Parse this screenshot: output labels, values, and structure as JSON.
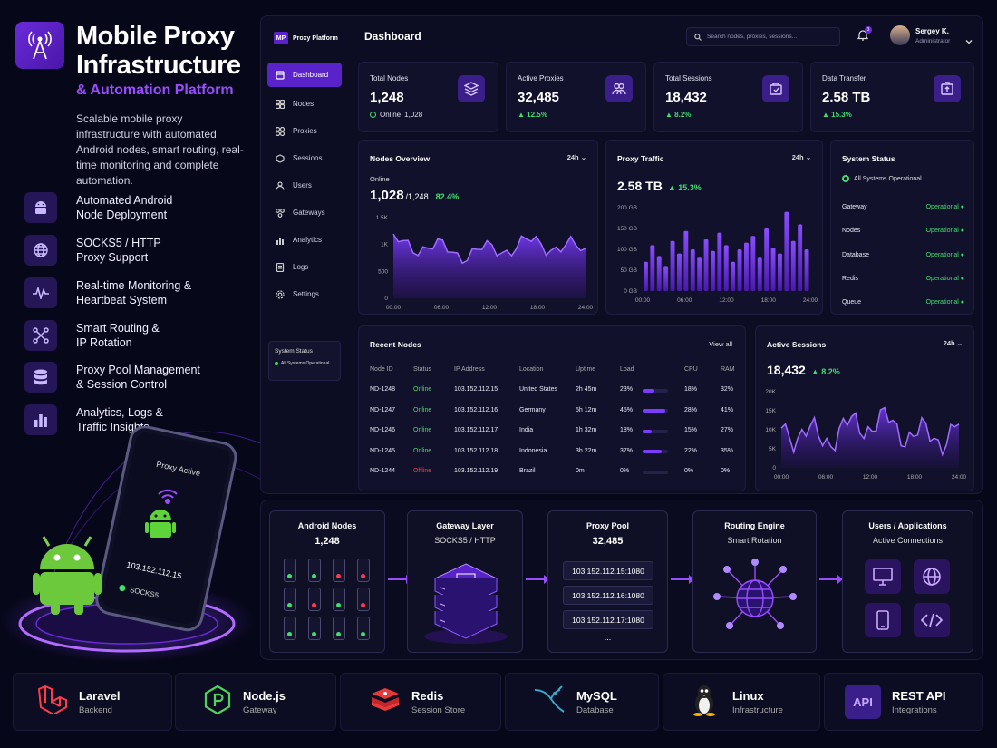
{
  "hero": {
    "title_line1": "Mobile Proxy",
    "title_line2": "Infrastructure",
    "subtitle": "& Automation Platform",
    "description": "Scalable mobile proxy infrastructure with automated Android nodes, smart routing, real-time monitoring and complete automation.",
    "features": [
      {
        "icon": "android-icon",
        "line1": "Automated Android",
        "line2": "Node Deployment"
      },
      {
        "icon": "globe-icon",
        "line1": "SOCKS5 / HTTP",
        "line2": "Proxy Support"
      },
      {
        "icon": "pulse-icon",
        "line1": "Real-time Monitoring &",
        "line2": "Heartbeat System"
      },
      {
        "icon": "routing-icon",
        "line1": "Smart Routing &",
        "line2": "IP Rotation"
      },
      {
        "icon": "database-icon",
        "line1": "Proxy Pool Management",
        "line2": "& Session Control"
      },
      {
        "icon": "bar-chart-icon",
        "line1": "Analytics, Logs &",
        "line2": "Traffic Insights"
      }
    ]
  },
  "phone": {
    "status": "Proxy Active",
    "ip": "103.152.112.15",
    "protocol": "SOCKS5"
  },
  "sidebar": {
    "brand_badge": "MP",
    "brand_name": "Proxy Platform",
    "items": [
      {
        "label": "Dashboard",
        "icon": "dashboard-icon"
      },
      {
        "label": "Nodes",
        "icon": "nodes-icon"
      },
      {
        "label": "Proxies",
        "icon": "proxies-icon"
      },
      {
        "label": "Sessions",
        "icon": "sessions-icon"
      },
      {
        "label": "Users",
        "icon": "users-icon"
      },
      {
        "label": "Gateways",
        "icon": "gateways-icon"
      },
      {
        "label": "Analytics",
        "icon": "analytics-icon"
      },
      {
        "label": "Logs",
        "icon": "logs-icon"
      },
      {
        "label": "Settings",
        "icon": "settings-icon"
      }
    ],
    "status_title": "System Status",
    "status_text": "All Systems Operational"
  },
  "topbar": {
    "title": "Dashboard",
    "search_placeholder": "Search nodes, proxies, sessions...",
    "notifications": "3",
    "user_name": "Sergey K.",
    "user_role": "Administrator"
  },
  "kpis": [
    {
      "label": "Total Nodes",
      "value": "1,248",
      "sub": "1,028",
      "sub_prefix": "Online",
      "icon": "layers-icon"
    },
    {
      "label": "Active Proxies",
      "value": "32,485",
      "sub": "▲ 12.5%",
      "icon": "users-icon"
    },
    {
      "label": "Total Sessions",
      "value": "18,432",
      "sub": "▲ 8.2%",
      "icon": "session-box-icon"
    },
    {
      "label": "Data Transfer",
      "value": "2.58 TB",
      "sub": "▲ 15.3%",
      "icon": "package-icon"
    }
  ],
  "nodes_overview": {
    "title": "Nodes Overview",
    "range": "24h",
    "caption": "Online",
    "value": "1,028",
    "total": "/1,248",
    "pct": "82.4%",
    "y_ticks": [
      "1.5K",
      "1K",
      "500",
      "0"
    ],
    "x_ticks": [
      "00:00",
      "06:00",
      "12:00",
      "18:00",
      "24:00"
    ]
  },
  "proxy_traffic": {
    "title": "Proxy Traffic",
    "range": "24h",
    "value": "2.58 TB",
    "pct": "▲ 15.3%",
    "y_ticks": [
      "200 GB",
      "150 GB",
      "100 GB",
      "50 GB",
      "0 GB"
    ],
    "x_ticks": [
      "00:00",
      "06:00",
      "12:00",
      "18:00",
      "24:00"
    ]
  },
  "system_status": {
    "title": "System Status",
    "overall": "All Systems Operational",
    "rows": [
      {
        "name": "Gateway",
        "status": "Operational"
      },
      {
        "name": "Nodes",
        "status": "Operational"
      },
      {
        "name": "Database",
        "status": "Operational"
      },
      {
        "name": "Redis",
        "status": "Operational"
      },
      {
        "name": "Queue",
        "status": "Operational"
      }
    ]
  },
  "recent_nodes": {
    "title": "Recent Nodes",
    "view_all": "View all",
    "headers": [
      "Node ID",
      "Status",
      "IP Address",
      "Location",
      "Uptime",
      "Load",
      "CPU",
      "RAM"
    ],
    "rows": [
      {
        "id": "ND-1248",
        "status": "Online",
        "ip": "103.152.112.15",
        "location": "United States",
        "uptime": "2h 45m",
        "load": "23%",
        "load_frac": 0.23,
        "cpu": "18%",
        "ram": "32%"
      },
      {
        "id": "ND-1247",
        "status": "Online",
        "ip": "103.152.112.16",
        "location": "Germany",
        "uptime": "5h 12m",
        "load": "45%",
        "load_frac": 0.45,
        "cpu": "28%",
        "ram": "41%"
      },
      {
        "id": "ND-1246",
        "status": "Online",
        "ip": "103.152.112.17",
        "location": "India",
        "uptime": "1h 32m",
        "load": "18%",
        "load_frac": 0.18,
        "cpu": "15%",
        "ram": "27%"
      },
      {
        "id": "ND-1245",
        "status": "Online",
        "ip": "103.152.112.18",
        "location": "Indonesia",
        "uptime": "3h 22m",
        "load": "37%",
        "load_frac": 0.37,
        "cpu": "22%",
        "ram": "35%"
      },
      {
        "id": "ND-1244",
        "status": "Offline",
        "ip": "103.152.112.19",
        "location": "Brazil",
        "uptime": "0m",
        "load": "0%",
        "load_frac": 0,
        "cpu": "0%",
        "ram": "0%"
      }
    ]
  },
  "active_sessions": {
    "title": "Active Sessions",
    "range": "24h",
    "value": "18,432",
    "pct": "▲ 8.2%",
    "y_ticks": [
      "20K",
      "15K",
      "10K",
      "5K",
      "0"
    ],
    "x_ticks": [
      "00:00",
      "06:00",
      "12:00",
      "18:00",
      "24:00"
    ]
  },
  "flow": {
    "android": {
      "title": "Android Nodes",
      "value": "1,248"
    },
    "gateway": {
      "title": "Gateway Layer",
      "sub": "SOCKS5 / HTTP"
    },
    "pool": {
      "title": "Proxy Pool",
      "value": "32,485",
      "items": [
        "103.152.112.15:1080",
        "103.152.112.16:1080",
        "103.152.112.17:1080"
      ],
      "more": "..."
    },
    "routing": {
      "title": "Routing Engine",
      "sub": "Smart Rotation"
    },
    "users": {
      "title": "Users / Applications",
      "sub": "Active Connections"
    }
  },
  "stack": [
    {
      "name": "Laravel",
      "sub": "Backend",
      "icon": "laravel-icon"
    },
    {
      "name": "Node.js",
      "sub": "Gateway",
      "icon": "nodejs-icon"
    },
    {
      "name": "Redis",
      "sub": "Session Store",
      "icon": "redis-icon"
    },
    {
      "name": "MySQL",
      "sub": "Database",
      "icon": "mysql-icon"
    },
    {
      "name": "Linux",
      "sub": "Infrastructure",
      "icon": "linux-icon"
    },
    {
      "name": "REST API",
      "sub": "Integrations",
      "icon": "api-icon",
      "badge": "API"
    }
  ],
  "colors": {
    "accent": "#6a2bd9",
    "green": "#3ee06b",
    "red": "#ff3b4b",
    "bg": "#07071a"
  }
}
